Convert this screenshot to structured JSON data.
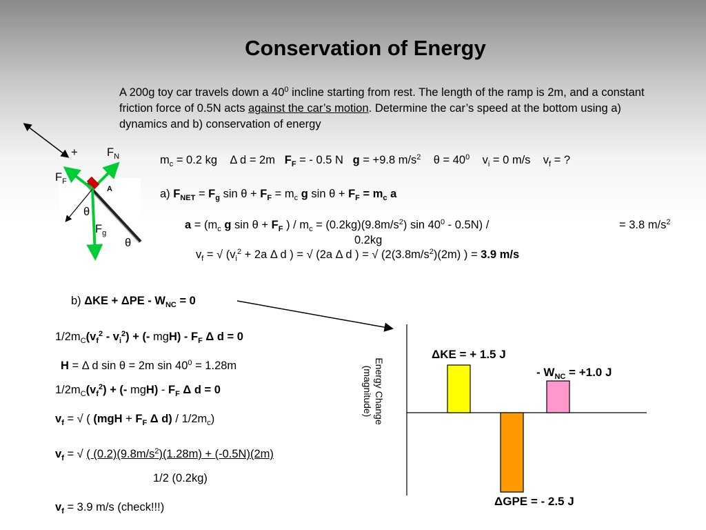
{
  "slide": {
    "title": "Conservation of  Energy",
    "problem": {
      "p1": "A 200g toy car travels down a 40",
      "p1_sup": "0",
      "p2": " incline starting from rest.  The length of the ramp is 2m, and a constant friction force of 0.5N acts ",
      "p3": "against the car’s motion",
      "p4": ".  Determine the car’s speed at the bottom using  a) dynamics and  b) conservation of energy"
    }
  },
  "diagram": {
    "plus": "+",
    "fn": "F",
    "fn_sub": "N",
    "ff": "F",
    "ff_sub": "F",
    "fg": "F",
    "fg_sub": "g",
    "theta1": "θ",
    "theta2": "θ",
    "car_mark": "A"
  },
  "givens": {
    "mc": "m",
    "mc_sub": "c",
    "mc_val": " = 0.2 kg",
    "d": "Δ d = 2m",
    "ff": "F",
    "ff_sub": "F",
    "ff_val": " = - 0.5 N",
    "g": "g",
    "g_val": " = +9.8 m/s",
    "g_sup": "2",
    "theta": "θ = 40",
    "theta_sup": "0",
    "vi": "v",
    "vi_sub": "i",
    "vi_val": " = 0 m/s",
    "vf": "v",
    "vf_sub": "f",
    "vf_val": " = ?"
  },
  "part_a": {
    "line1": {
      "pre": "a)  ",
      "fnet": "F",
      "fnet_sub": "NET",
      "eq1": " =  ",
      "fg": "F",
      "fg_sub": "g",
      "sin1": " sin θ +  ",
      "ff": "F",
      "ff_sub": "F",
      "eq2": "   =  m",
      "mc_sub": "c",
      "g": " g",
      "sin2": " sin θ  +  ",
      "ff2": "F",
      "ff2_sub": "F",
      "eq3": "    =  ",
      "m": "m",
      "m_sub": "c",
      "a": " a"
    },
    "line2": {
      "a": "a",
      "eq": " =  (m",
      "mc_sub": "c",
      "g": " g",
      "sin": " sin θ  +  ",
      "ff": "F",
      "ff_sub": "F",
      "div": " ) /  m",
      "m_sub": "c",
      "eq2": " =  (0.2kg)(9.8m/s",
      "sup1": "2",
      "rest": ") sin 40",
      "sup2": "0",
      "tail": "  - 0.5N) /",
      "result": "= 3.8 m/s",
      "result_sup": "2",
      "denom": "0.2kg"
    },
    "line3": {
      "vf": "v",
      "vf_sub": "f",
      "p1": " =  √ (v",
      "vi_sub": "i",
      "sup1": "2",
      "p2": "  + 2a Δ d ) =  √ (2a Δ d )   =  √ (2(3.8m/s",
      "sup2": "2",
      "p3": ")(2m) )   =  ",
      "result": "3.9 m/s"
    }
  },
  "part_b": {
    "label": "b)   ",
    "equation": "ΔKE + ΔPE - W",
    "eq_sub": "NC",
    "eq_tail": " = 0",
    "l1": {
      "a": "1/2m",
      "a_sub": "C",
      "b": "(v",
      "b_sub": "f",
      "b_sup": "2",
      "c": " - v",
      "c_sub": "i",
      "c_sup": "2",
      "d": ") + (- ",
      "e": "mg",
      "f": "H) - F",
      "f_sub": "F",
      "g": " Δ d = 0"
    },
    "l2": {
      "h": "H",
      "rest": " = Δ d sin θ =  2m sin 40",
      "sup": "0",
      "tail": " = 1.28m"
    },
    "l3": {
      "a": "1/2m",
      "a_sub": "C",
      "b": "(v",
      "b_sub": "f",
      "b_sup": "2",
      "c": ") + (- ",
      "d": "mg",
      "e": "H)",
      "f": " - ",
      "g": "F",
      "g_sub": "F",
      "h": " Δ d = 0"
    },
    "l4": {
      "vf": "v",
      "vf_sub": "f",
      "a": " = √ ( ",
      "b": "(mg",
      "c": "H",
      "d": " + ",
      "e": "F",
      "e_sub": "F",
      "f": " Δ d)",
      "g": " / 1/2m",
      "g_sub": "c",
      "h": ")"
    },
    "l5": {
      "vf": "v",
      "vf_sub": "f",
      "a": " = √ ",
      "num": "( (0.2)(9.8m/s",
      "num_sup": "2",
      "num2": ")(1.28m) + (-0.5N)(2m)"
    },
    "l6": {
      "denom": "1/2 (0.2kg)"
    },
    "l7": {
      "vf": "v",
      "vf_sub": "f",
      "rest": " = 3.9 m/s    (check!!!)"
    }
  },
  "chart_data": {
    "type": "bar",
    "ylabel_line1": "Energy Change",
    "ylabel_line2": "(magnitude)",
    "series": [
      {
        "label": "ΔKE = + 1.5 J",
        "value": 1.5,
        "color": "#ffff00"
      },
      {
        "label": "ΔGPE = - 2.5 J",
        "value": -2.5,
        "color": "#ff9900"
      },
      {
        "label_pre": "- W",
        "label_sub": "NC",
        "label_post": " = +1.0 J",
        "value": 1.0,
        "color": "#ff99cc"
      }
    ]
  }
}
